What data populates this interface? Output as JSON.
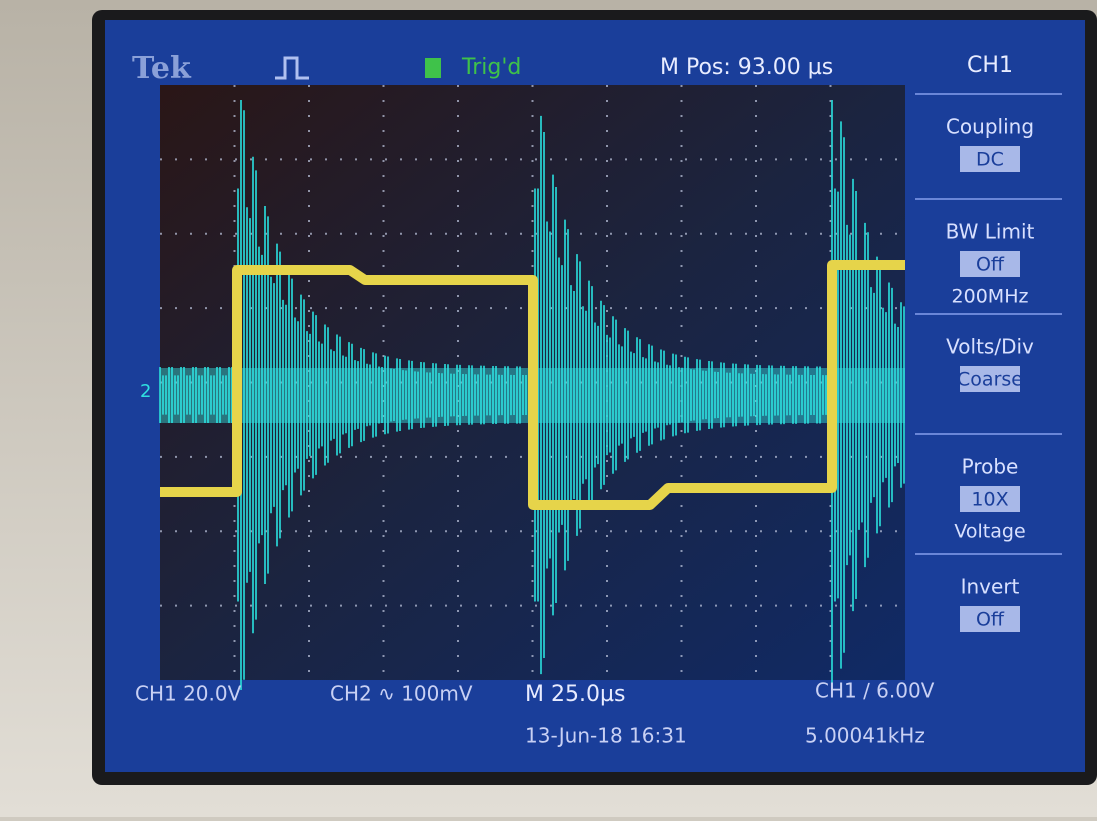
{
  "header": {
    "brand": "Tek",
    "trigger_status": "Trig'd",
    "position": "M Pos: 93.00 µs"
  },
  "menu": {
    "title": "CH1",
    "items": [
      {
        "label": "Coupling",
        "value": "DC"
      },
      {
        "label": "BW Limit",
        "value": "Off",
        "sub": "200MHz"
      },
      {
        "label": "Volts/Div",
        "value": "Coarse"
      },
      {
        "label": "Probe",
        "value": "10X",
        "sub": "Voltage"
      },
      {
        "label": "Invert",
        "value": "Off"
      }
    ]
  },
  "footer": {
    "ch1_scale": "CH1 20.0V",
    "ch2_scale": "CH2 ∿ 100mV",
    "timebase": "M 25.0µs",
    "trigger": "CH1 ∕ 6.00V",
    "date": "13-Jun-18 16:31",
    "frequency": "5.00041kHz"
  },
  "markers": {
    "ch2": "2"
  }
}
